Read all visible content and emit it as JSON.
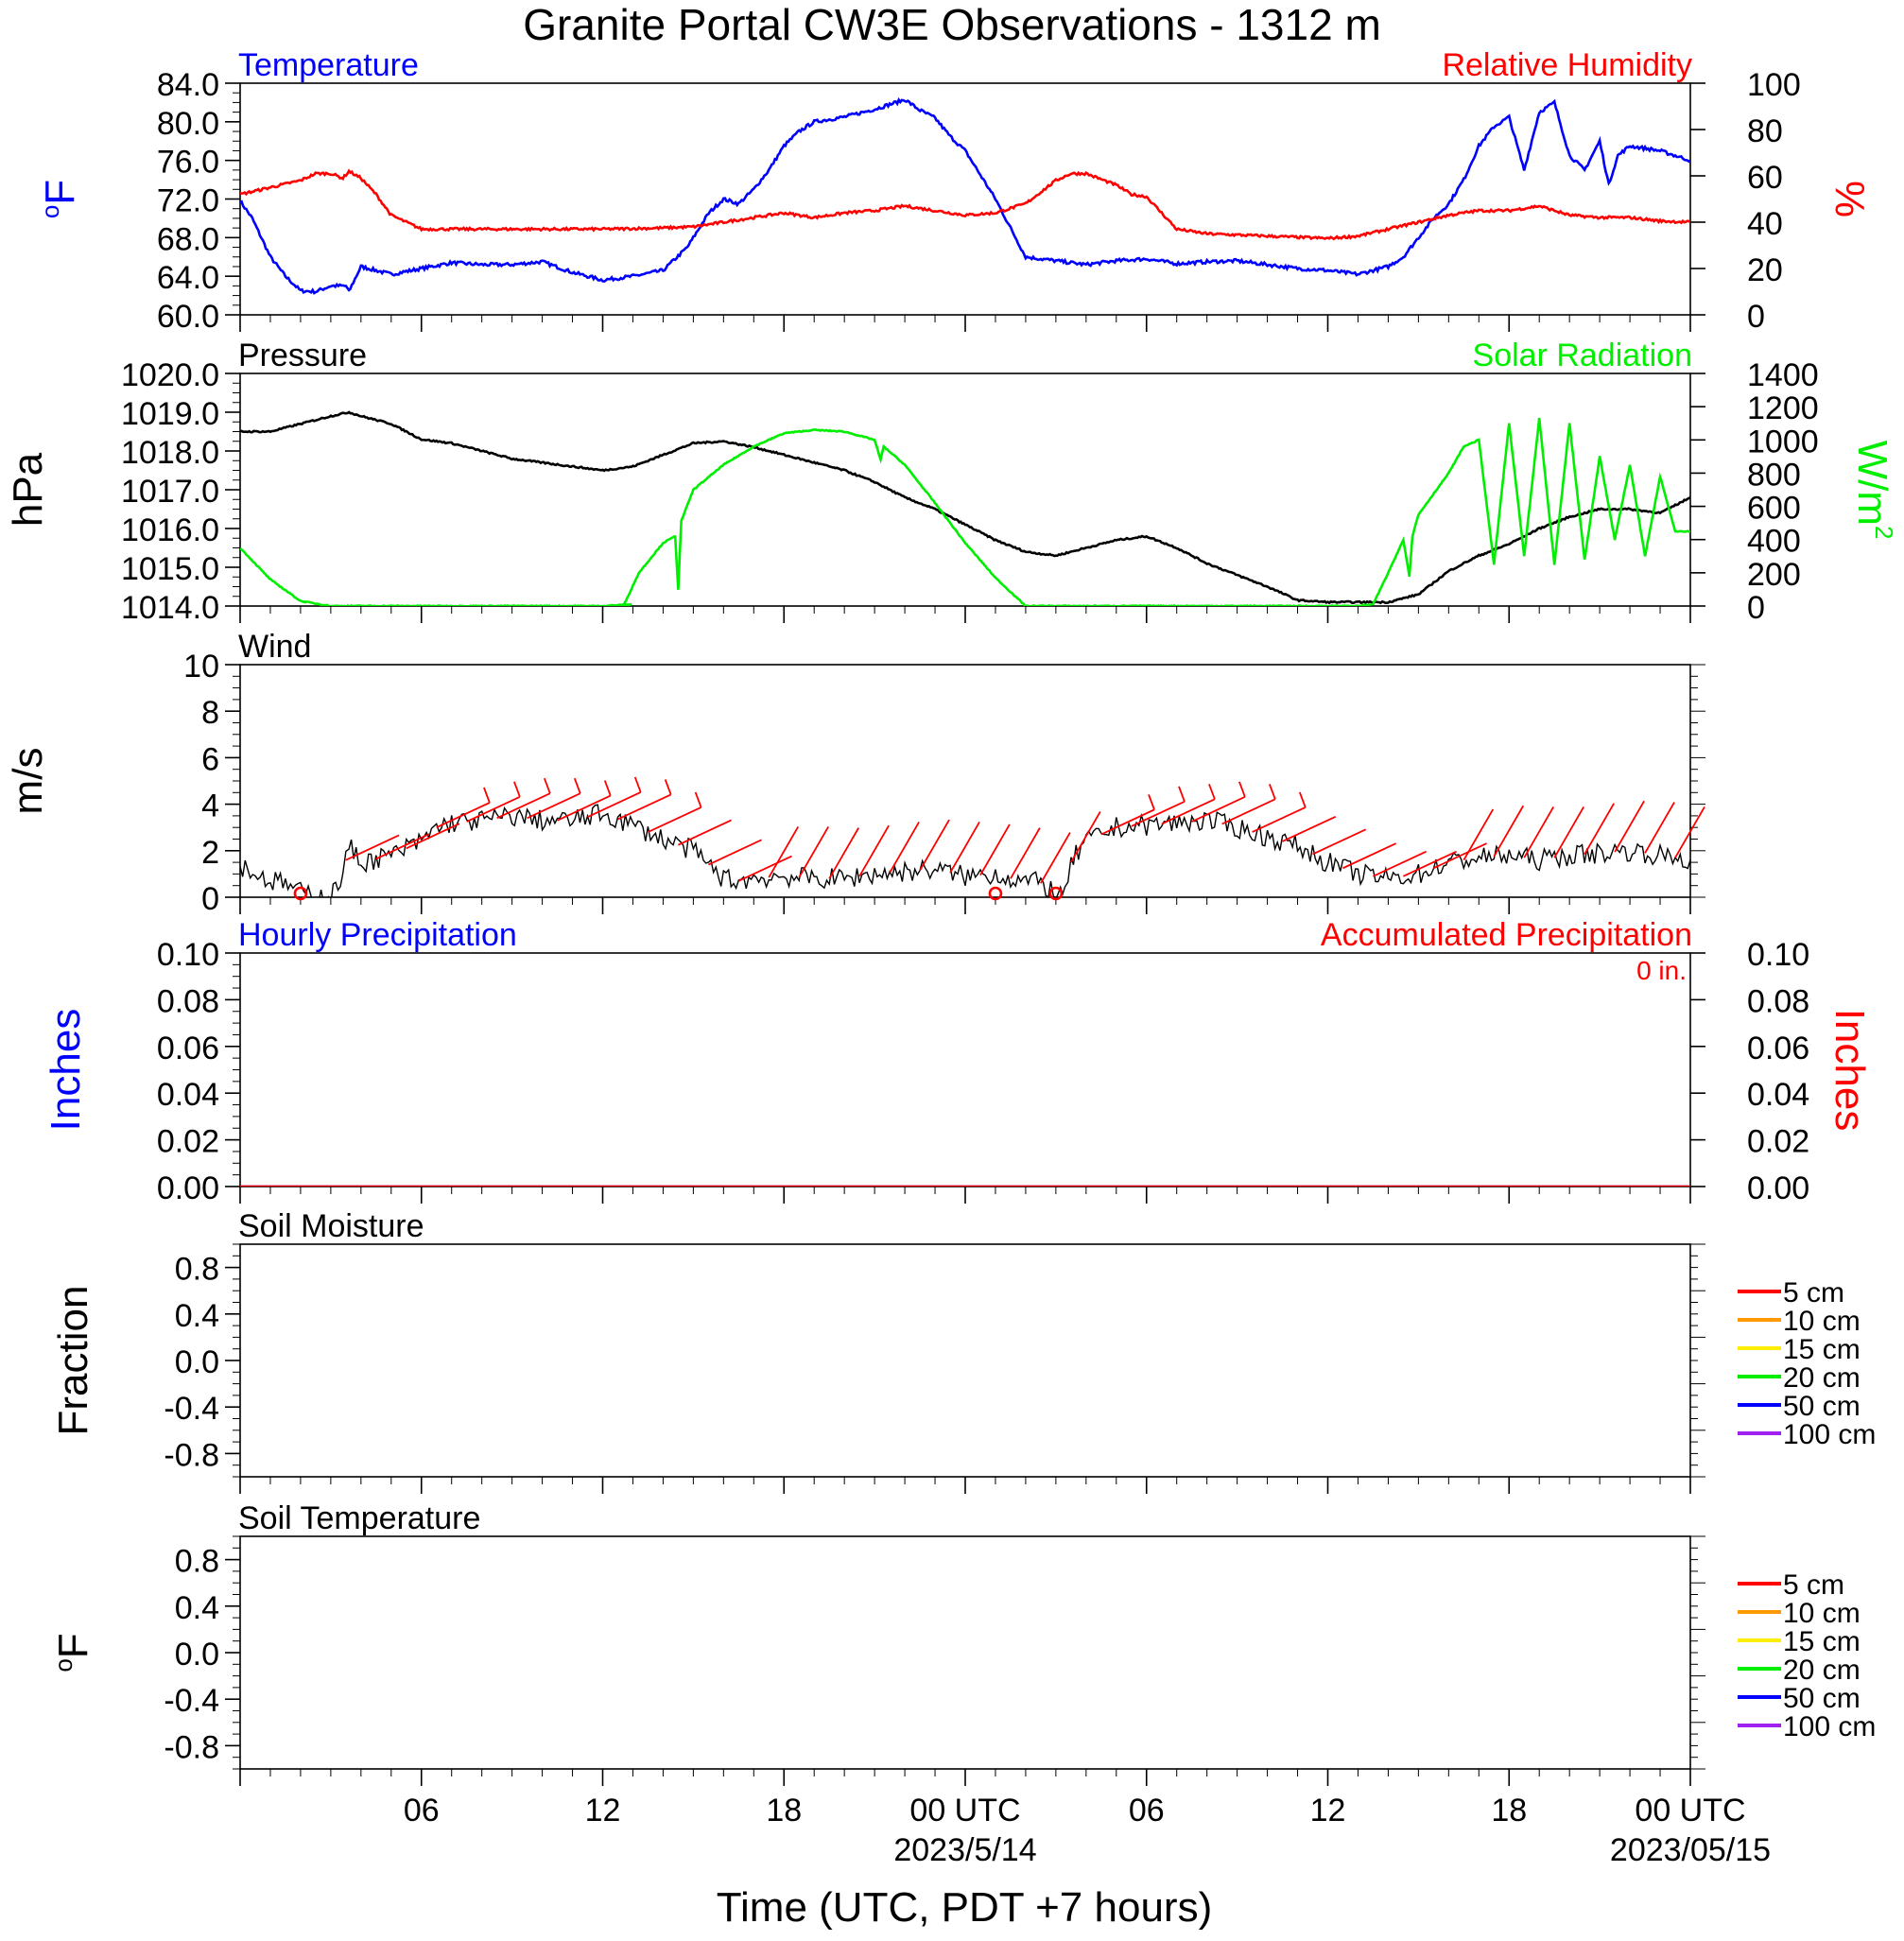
{
  "title": "Granite Portal CW3E Observations - 1312 m",
  "x_axis": {
    "label": "Time (UTC, PDT +7 hours)",
    "ticks": [
      "06",
      "12",
      "18",
      "00 UTC",
      "06",
      "12",
      "18",
      "00 UTC"
    ],
    "dates": [
      "2023/5/14",
      "2023/05/15"
    ]
  },
  "colors": {
    "temperature": "#0000ff",
    "humidity": "#ff0000",
    "pressure": "#000000",
    "solar": "#00ee00",
    "wind": "#000000",
    "barbs": "#ff0000",
    "soil_legend": [
      "#ff0000",
      "#ff9900",
      "#ffee00",
      "#00ee00",
      "#0000ff",
      "#a020f0"
    ]
  },
  "soil_legend_labels": [
    "5 cm",
    "10 cm",
    "15 cm",
    "20 cm",
    "50 cm",
    "100 cm"
  ],
  "chart_data": [
    {
      "type": "line",
      "panel": "temp_rh",
      "left_title": "Temperature",
      "right_title": "Relative Humidity",
      "ylabel_left": "oF",
      "ylabel_right": "%",
      "ylim_left": [
        60,
        84
      ],
      "ylim_right": [
        0,
        100
      ],
      "yticks_left": [
        "84.0",
        "80.0",
        "76.0",
        "72.0",
        "68.0",
        "64.0",
        "60.0"
      ],
      "yticks_right": [
        "100",
        "80",
        "60",
        "40",
        "20",
        "0"
      ],
      "x_hours": [
        0,
        48
      ],
      "series": [
        {
          "name": "Temperature",
          "axis": "left",
          "x": [
            0,
            0.4,
            1,
            1.5,
            2,
            2.5,
            3,
            3.5,
            3.6,
            4,
            5,
            6,
            7,
            8,
            9,
            10,
            11,
            12,
            13,
            14,
            14.8,
            15,
            15.5,
            16,
            16.5,
            17,
            17.5,
            18,
            18.5,
            19,
            20,
            21,
            21.5,
            22,
            22.5,
            23,
            23.5,
            24,
            24.5,
            25,
            25.5,
            26,
            27,
            28,
            29,
            30,
            31,
            32,
            33,
            34,
            35,
            36,
            37,
            38,
            38.5,
            39,
            39.5,
            40,
            40.5,
            41,
            41.5,
            42,
            42.5,
            43,
            43.5,
            44,
            44.5,
            45,
            45.3,
            45.6,
            46,
            47,
            48
          ],
          "y": [
            71.8,
            70,
            66,
            64,
            62.5,
            62.4,
            63,
            63,
            62.4,
            65,
            64.2,
            64.8,
            65.4,
            65.2,
            65.2,
            65.5,
            64.4,
            63.6,
            64,
            64.6,
            67,
            68,
            70.5,
            72,
            71.5,
            73,
            75,
            77.5,
            79,
            80,
            80.5,
            81.3,
            81.8,
            82.3,
            81.2,
            80.4,
            78.5,
            77,
            74.5,
            72,
            69,
            66,
            65.6,
            65.2,
            65.6,
            65.8,
            65.3,
            65.5,
            65.6,
            65.2,
            64.8,
            64.6,
            64.2,
            65,
            66,
            68,
            70,
            71.5,
            74,
            77.5,
            79.5,
            80.5,
            75,
            81,
            82,
            76.5,
            75,
            78,
            73.5,
            76.5,
            77.5,
            77,
            76
          ]
        },
        {
          "name": "Relative Humidity",
          "axis": "right",
          "x": [
            0,
            1,
            2,
            2.5,
            3,
            3.4,
            3.6,
            4,
            4.5,
            5,
            6,
            8,
            10,
            12,
            14,
            15,
            16,
            17,
            18,
            19,
            20,
            21,
            22,
            23,
            24,
            25,
            26,
            26.5,
            27,
            27.5,
            28,
            29,
            29.5,
            30,
            31,
            32,
            34,
            36,
            37,
            38,
            39,
            40,
            41,
            42,
            43,
            44,
            45,
            46,
            47,
            48
          ],
          "y": [
            52,
            55,
            58,
            61,
            61,
            59,
            62,
            59,
            52,
            43,
            37,
            37,
            37,
            37,
            37.5,
            38,
            40,
            42,
            44,
            42,
            44,
            45,
            47,
            45,
            43,
            44,
            48,
            53,
            58,
            61,
            61,
            56,
            52,
            51,
            37,
            35,
            34,
            33,
            34,
            37,
            40,
            43,
            45,
            45,
            47,
            43,
            42,
            42,
            40.5,
            40
          ]
        }
      ]
    },
    {
      "type": "line",
      "panel": "pressure_solar",
      "left_title": "Pressure",
      "right_title": "Solar Radiation",
      "ylabel_left": "hPa",
      "ylabel_right": "W/m2",
      "ylim_left": [
        1014,
        1020
      ],
      "ylim_right": [
        0,
        1400
      ],
      "yticks_left": [
        "1020.0",
        "1019.0",
        "1018.0",
        "1017.0",
        "1016.0",
        "1015.0",
        "1014.0"
      ],
      "yticks_right": [
        "1400",
        "1200",
        "1000",
        "800",
        "600",
        "400",
        "200",
        "0"
      ],
      "series": [
        {
          "name": "Pressure",
          "axis": "left",
          "x": [
            0,
            1,
            2,
            3,
            3.6,
            4,
            5,
            6,
            7,
            8,
            9,
            10,
            11,
            12,
            13,
            14,
            15,
            16,
            17,
            18,
            19,
            20,
            21,
            22,
            23,
            24,
            25,
            26,
            27,
            28,
            29,
            30,
            31,
            32,
            33,
            34,
            35,
            36,
            37,
            38,
            39,
            40,
            41,
            42,
            43,
            44,
            45,
            46,
            47,
            48
          ],
          "y": [
            1018.5,
            1018.5,
            1018.7,
            1018.9,
            1019.0,
            1018.9,
            1018.7,
            1018.3,
            1018.2,
            1018.0,
            1017.8,
            1017.7,
            1017.6,
            1017.5,
            1017.6,
            1017.9,
            1018.2,
            1018.25,
            1018.1,
            1017.9,
            1017.7,
            1017.5,
            1017.2,
            1016.8,
            1016.5,
            1016.1,
            1015.7,
            1015.4,
            1015.3,
            1015.5,
            1015.7,
            1015.8,
            1015.5,
            1015.1,
            1014.8,
            1014.5,
            1014.15,
            1014.1,
            1014.1,
            1014.1,
            1014.3,
            1014.9,
            1015.3,
            1015.6,
            1016.0,
            1016.3,
            1016.5,
            1016.5,
            1016.4,
            1016.8
          ]
        },
        {
          "name": "Solar Radiation",
          "axis": "right",
          "x": [
            0,
            1,
            2,
            3,
            4,
            6,
            8,
            10,
            12,
            13,
            12.4,
            12.7,
            13.2,
            14,
            14.4,
            14.5,
            14.6,
            15,
            16,
            17,
            18,
            19,
            20,
            21,
            21.2,
            21.3,
            22,
            23,
            24,
            25,
            26,
            27,
            28,
            30,
            32,
            34,
            36,
            37,
            37.5,
            38,
            38.5,
            38.7,
            38.8,
            39,
            40,
            40.5,
            41,
            41.5,
            42,
            42.5,
            43,
            43.5,
            44,
            44.5,
            45,
            45.5,
            46,
            46.5,
            47,
            47.5,
            48
          ],
          "y": [
            350,
            160,
            30,
            0,
            0,
            0,
            0,
            0,
            0,
            10,
            0,
            5,
            200,
            380,
            420,
            100,
            510,
            700,
            850,
            960,
            1040,
            1060,
            1050,
            1000,
            880,
            960,
            850,
            620,
            380,
            170,
            0,
            0,
            0,
            0,
            0,
            0,
            0,
            0,
            10,
            200,
            400,
            180,
            420,
            550,
            800,
            960,
            1000,
            250,
            1100,
            300,
            1130,
            250,
            1100,
            280,
            900,
            400,
            850,
            300,
            780,
            450,
            450
          ]
        }
      ]
    },
    {
      "type": "line",
      "panel": "wind",
      "left_title": "Wind",
      "ylabel_left": "m/s",
      "ylim": [
        0,
        10
      ],
      "yticks_left": [
        "10",
        "8",
        "6",
        "4",
        "2",
        "0"
      ],
      "series": [
        {
          "name": "Wind",
          "axis": "left",
          "x": [
            0,
            0.5,
            1,
            1.5,
            2,
            2.6,
            3,
            3.4,
            3.6,
            4,
            5,
            6,
            6.5,
            7,
            8,
            9,
            10,
            11,
            12,
            13,
            14,
            15,
            15.5,
            16,
            16.5,
            17,
            18,
            19,
            20,
            21,
            22,
            23,
            24,
            25,
            25.5,
            26,
            26.5,
            27,
            27.3,
            27.5,
            28,
            29,
            30,
            31,
            32,
            33,
            34,
            35,
            36,
            37,
            38,
            38.5,
            39,
            40,
            41,
            42,
            43,
            44,
            45,
            46,
            47,
            48
          ],
          "y": [
            1.4,
            1.0,
            0.7,
            0.6,
            0.2,
            0.1,
            0.0,
            1.0,
            2.2,
            1.5,
            1.8,
            2.4,
            3.0,
            3.2,
            3.3,
            3.5,
            3.3,
            3.3,
            3.6,
            3.1,
            2.5,
            2.0,
            1.4,
            0.8,
            0.7,
            0.8,
            0.9,
            0.8,
            0.8,
            1.0,
            1.1,
            1.2,
            0.9,
            1.0,
            0.8,
            0.7,
            0.6,
            0.2,
            0.0,
            1.5,
            2.4,
            3.0,
            3.1,
            3.2,
            3.3,
            3.0,
            2.6,
            2.2,
            1.5,
            1.0,
            0.8,
            0.9,
            1.0,
            1.5,
            1.7,
            1.8,
            1.6,
            1.8,
            1.9,
            2.0,
            1.8,
            1.6
          ]
        }
      ],
      "calm_marker_hours": [
        2.0,
        25.0,
        27.0
      ]
    },
    {
      "type": "line",
      "panel": "precipitation",
      "left_title": "Hourly Precipitation",
      "right_title": "Accumulated Precipitation",
      "accumulated_label": "0 in.",
      "ylabel_left": "Inches",
      "ylabel_right": "Inches",
      "ylim": [
        0,
        0.1
      ],
      "yticks_left": [
        "0.10",
        "0.08",
        "0.06",
        "0.04",
        "0.02",
        "0.00"
      ],
      "yticks_right": [
        "0.10",
        "0.08",
        "0.06",
        "0.04",
        "0.02",
        "0.00"
      ],
      "series": [
        {
          "name": "Hourly Precipitation",
          "axis": "left",
          "x": [
            0,
            48
          ],
          "y": [
            0,
            0
          ]
        },
        {
          "name": "Accumulated Precipitation",
          "axis": "right",
          "x": [
            0,
            48
          ],
          "y": [
            0,
            0
          ]
        }
      ]
    },
    {
      "type": "line",
      "panel": "soil_moisture",
      "left_title": "Soil Moisture",
      "ylabel_left": "Fraction",
      "ylim": [
        -1,
        1
      ],
      "yticks_left": [
        "0.8",
        "0.4",
        "0.0",
        "-0.4",
        "-0.8"
      ],
      "series": []
    },
    {
      "type": "line",
      "panel": "soil_temperature",
      "left_title": "Soil Temperature",
      "ylabel_left": "oF",
      "ylim": [
        -1,
        1
      ],
      "yticks_left": [
        "0.8",
        "0.4",
        "0.0",
        "-0.4",
        "-0.8"
      ],
      "series": []
    }
  ]
}
